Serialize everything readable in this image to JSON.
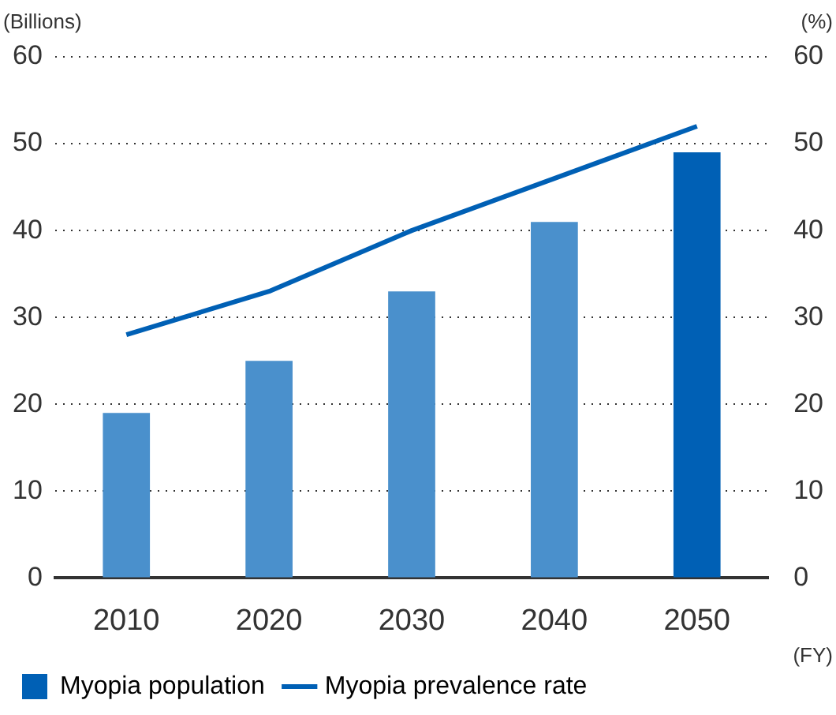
{
  "chart_data": {
    "type": "bar",
    "xlabel": "(FY)",
    "ylabel": "(Billions)",
    "y2label": "(%)",
    "categories": [
      "2010",
      "2020",
      "2030",
      "2040",
      "2050"
    ],
    "series": [
      {
        "name": "Myopia population",
        "color": "#0060b5",
        "colors": [
          "#4a90cc",
          "#4a90cc",
          "#4a90cc",
          "#4a90cc",
          "#0060b5"
        ],
        "values": [
          19,
          25,
          33,
          41,
          49
        ]
      },
      {
        "name": "Myopia prevalence rate",
        "type": "line",
        "axis": "y2",
        "color": "#0060b5",
        "values": [
          28,
          33,
          40,
          46,
          52
        ]
      }
    ],
    "ylim": [
      0,
      60
    ],
    "yticks": [
      0,
      10,
      20,
      30,
      40,
      50,
      60
    ],
    "y2lim": [
      0,
      60
    ],
    "y2ticks": [
      0,
      10,
      20,
      30,
      40,
      50,
      60
    ],
    "grid": "y",
    "legend": "bottom left",
    "marker": "none",
    "line_style": "solid"
  }
}
